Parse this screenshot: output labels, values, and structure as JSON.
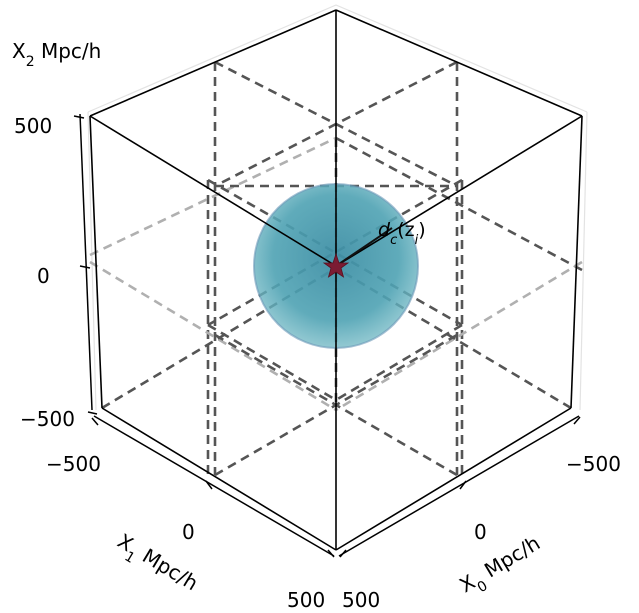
{
  "chart_data": {
    "type": "3d-diagram",
    "title": "",
    "axes": {
      "x0": {
        "label_base": "X",
        "label_sub": "0",
        "label_unit": " Mpc/h",
        "ticks": [
          "−500",
          "0",
          "500"
        ]
      },
      "x1": {
        "label_base": "X",
        "label_sub": "1",
        "label_unit": " Mpc/h",
        "ticks": [
          "−500",
          "0",
          "500"
        ]
      },
      "x2": {
        "label_base": "X",
        "label_sub": "2",
        "label_unit": " Mpc/h",
        "ticks": [
          "500",
          "0",
          "−500"
        ]
      }
    },
    "box_range_mpc_h": [
      -500,
      500
    ],
    "subdivisions": 2,
    "sphere_center_mpc_h": [
      0,
      0,
      0
    ],
    "annotation": {
      "symbol": "d",
      "subscript": "c",
      "arg": "(z",
      "arg_sub": "i",
      "close": ")"
    },
    "marker": "star"
  },
  "colors": {
    "sphere_fill": "#4f9fb3",
    "sphere_edge": "#5a8fb5",
    "star": "#7b1c33",
    "box_edge": "#000000",
    "dashed_dark": "#555555",
    "dashed_light": "#b0b0b0"
  }
}
